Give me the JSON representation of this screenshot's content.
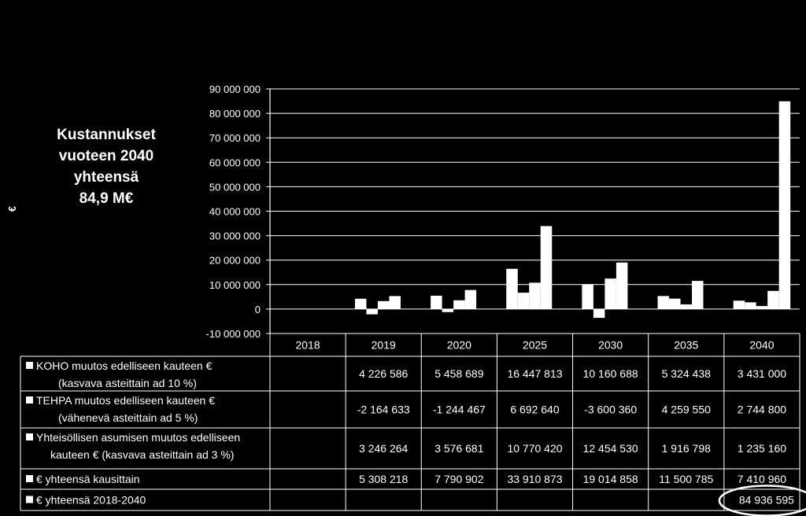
{
  "callout": {
    "line1": "Kustannukset",
    "line2": "vuoteen 2040",
    "line3": "yhteensä",
    "line4": "84,9 M€"
  },
  "y_unit": "€",
  "chart_data": {
    "type": "bar",
    "categories": [
      "2018",
      "2019",
      "2020",
      "2025",
      "2030",
      "2035",
      "2040"
    ],
    "ylim": [
      -10000000,
      90000000
    ],
    "ytick_step": 10000000,
    "ytick_labels": [
      "-10 000 000",
      "0",
      "10 000 000",
      "20 000 000",
      "30 000 000",
      "40 000 000",
      "50 000 000",
      "60 000 000",
      "70 000 000",
      "80 000 000",
      "90 000 000"
    ],
    "grid": true,
    "bar_color": "#ffffff",
    "series": [
      {
        "name": "KOHO muutos edelliseen kauteen € (kasvava asteittain ad 10 %)",
        "row_label_lines": [
          "KOHO muutos edelliseen kauteen €",
          "(kasvava asteittain ad 10 %)"
        ],
        "values": [
          null,
          4226586,
          5458689,
          16447813,
          10160688,
          5324438,
          3431000
        ],
        "labels": [
          "",
          "4 226 586",
          "5 458 689",
          "16 447 813",
          "10 160 688",
          "5 324 438",
          "3 431 000"
        ]
      },
      {
        "name": "TEHPA muutos edelliseen kauteen € (vähenevä asteittain ad 5 %)",
        "row_label_lines": [
          "TEHPA muutos edelliseen kauteen €",
          "(vähenevä asteittain ad  5 %)"
        ],
        "values": [
          null,
          -2164633,
          -1244467,
          6692640,
          -3600360,
          4259550,
          2744800
        ],
        "labels": [
          "",
          "-2 164 633",
          "-1 244 467",
          "6 692 640",
          "-3 600 360",
          "4 259 550",
          "2 744 800"
        ]
      },
      {
        "name": "Yhteisöllisen asumisen muutos edelliseen kauteen € (kasvava asteittain ad 3 %)",
        "row_label_lines": [
          "Yhteisöllisen asumisen muutos edelliseen",
          "kauteen € (kasvava asteittain ad  3 %)"
        ],
        "values": [
          null,
          3246264,
          3576681,
          10770420,
          12454530,
          1916798,
          1235160
        ],
        "labels": [
          "",
          "3 246 264",
          "3 576 681",
          "10 770 420",
          "12 454 530",
          "1 916 798",
          "1 235 160"
        ]
      },
      {
        "name": "€ yhteensä kausittain",
        "row_label_lines": [
          "€ yhteensä kausittain"
        ],
        "values": [
          null,
          5308218,
          7790902,
          33910873,
          19014858,
          11500785,
          7410960
        ],
        "labels": [
          "",
          "5 308 218",
          "7 790 902",
          "33 910 873",
          "19 014 858",
          "11 500 785",
          "7 410 960"
        ]
      },
      {
        "name": "€ yhteensä 2018-2040",
        "row_label_lines": [
          "€ yhteensä 2018-2040"
        ],
        "values": [
          null,
          null,
          null,
          null,
          null,
          null,
          84936595
        ],
        "labels": [
          "",
          "",
          "",
          "",
          "",
          "",
          "84 936 595"
        ]
      }
    ],
    "highlighted_cell": {
      "series": 4,
      "category": 6
    }
  }
}
